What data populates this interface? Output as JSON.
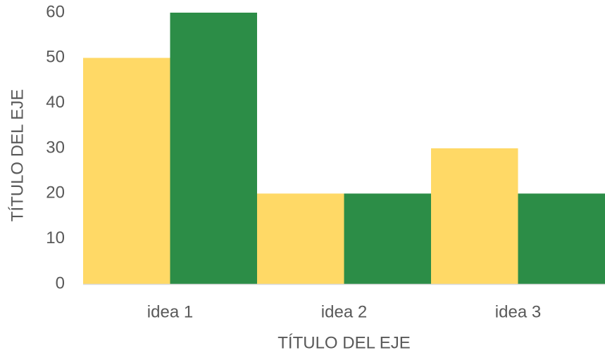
{
  "chart_data": {
    "type": "bar",
    "categories": [
      "idea 1",
      "idea 2",
      "idea 3"
    ],
    "series": [
      {
        "values": [
          50,
          20,
          30
        ],
        "color": "#FFD966"
      },
      {
        "values": [
          60,
          20,
          20
        ],
        "color": "#2C8D47"
      }
    ],
    "xlabel": "TÍTULO DEL EJE",
    "ylabel": "TÍTULO DEL EJE",
    "ylim": [
      0,
      60
    ],
    "yticks": [
      0,
      10,
      20,
      30,
      40,
      50,
      60
    ],
    "grid": false,
    "axis_color": "#D9D9D9"
  }
}
